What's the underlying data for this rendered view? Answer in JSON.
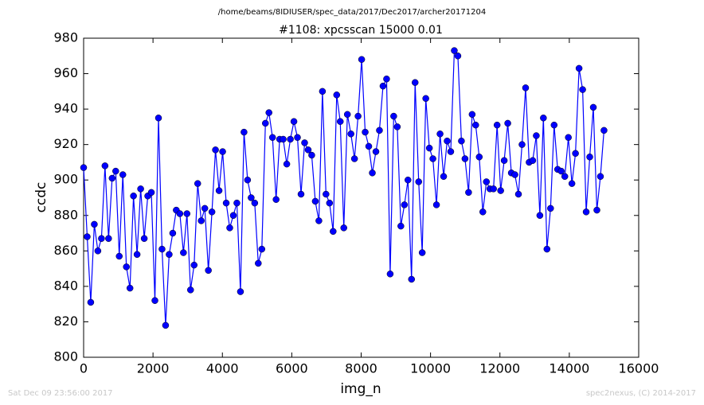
{
  "chart_data": {
    "type": "line",
    "suptitle": "/home/beams/8IDIUSER/spec_data/2017/Dec2017/archer20171204",
    "title": "#1108: xpcsscan 15000 0.01",
    "x_label": "img_n",
    "y_label": "ccdc",
    "timestamp": "Sat Dec 09 23:56:00 2017",
    "credit": "spec2nexus, (C) 2014-2017",
    "xlim": [
      0,
      16000
    ],
    "xticks": [
      0,
      2000,
      4000,
      6000,
      8000,
      10000,
      12000,
      14000,
      16000
    ],
    "ylim": [
      800,
      980
    ],
    "yticks": [
      800,
      820,
      840,
      860,
      880,
      900,
      920,
      940,
      960,
      980
    ],
    "grid": false,
    "x": [
      0,
      103,
      205,
      308,
      411,
      514,
      616,
      719,
      822,
      925,
      1027,
      1130,
      1233,
      1336,
      1438,
      1541,
      1644,
      1747,
      1849,
      1952,
      2055,
      2158,
      2260,
      2363,
      2466,
      2569,
      2671,
      2774,
      2877,
      2979,
      3082,
      3185,
      3288,
      3390,
      3493,
      3596,
      3699,
      3801,
      3904,
      4007,
      4110,
      4212,
      4315,
      4418,
      4521,
      4623,
      4726,
      4829,
      4932,
      5034,
      5137,
      5240,
      5342,
      5445,
      5548,
      5651,
      5753,
      5856,
      5959,
      6062,
      6164,
      6267,
      6370,
      6473,
      6575,
      6678,
      6781,
      6884,
      6986,
      7089,
      7192,
      7295,
      7397,
      7500,
      7603,
      7705,
      7808,
      7911,
      8014,
      8116,
      8219,
      8322,
      8425,
      8527,
      8630,
      8733,
      8836,
      8938,
      9041,
      9144,
      9247,
      9349,
      9452,
      9555,
      9658,
      9760,
      9863,
      9966,
      10068,
      10171,
      10274,
      10377,
      10479,
      10582,
      10685,
      10788,
      10890,
      10993,
      11096,
      11199,
      11301,
      11404,
      11507,
      11610,
      11712,
      11815,
      11918,
      12021,
      12123,
      12226,
      12329,
      12432,
      12534,
      12637,
      12740,
      12842,
      12945,
      13048,
      13151,
      13253,
      13356,
      13459,
      13562,
      13664,
      13767,
      13870,
      13973,
      14075,
      14178,
      14281,
      14384,
      14486,
      14589,
      14692,
      14795,
      14897,
      15000
    ],
    "series": [
      {
        "color": "#0000ff",
        "values": [
          907,
          868,
          831,
          875,
          860,
          867,
          908,
          867,
          901,
          905,
          857,
          903,
          851,
          839,
          891,
          858,
          895,
          867,
          891,
          893,
          832,
          935,
          861,
          818,
          858,
          870,
          883,
          881,
          859,
          881,
          838,
          852,
          898,
          877,
          884,
          849,
          882,
          917,
          894,
          916,
          887,
          873,
          880,
          887,
          837,
          927,
          900,
          890,
          887,
          853,
          861,
          932,
          938,
          924,
          889,
          923,
          923,
          909,
          923,
          933,
          924,
          892,
          921,
          917,
          914,
          888,
          877,
          950,
          892,
          887,
          871,
          948,
          933,
          873,
          937,
          926,
          912,
          936,
          968,
          927,
          919,
          904,
          916,
          928,
          953,
          957,
          847,
          936,
          930,
          874,
          886,
          900,
          844,
          955,
          899,
          859,
          946,
          918,
          912,
          886,
          926,
          902,
          922,
          916,
          973,
          970,
          922,
          912,
          893,
          937,
          931,
          913,
          882,
          899,
          895,
          895,
          931,
          894,
          911,
          932,
          904,
          903,
          892,
          920,
          952,
          910,
          911,
          925,
          880,
          935,
          861,
          884,
          931,
          906,
          905,
          902,
          924,
          898,
          915,
          963,
          951,
          882,
          913,
          941,
          883,
          902,
          928
        ]
      }
    ]
  }
}
